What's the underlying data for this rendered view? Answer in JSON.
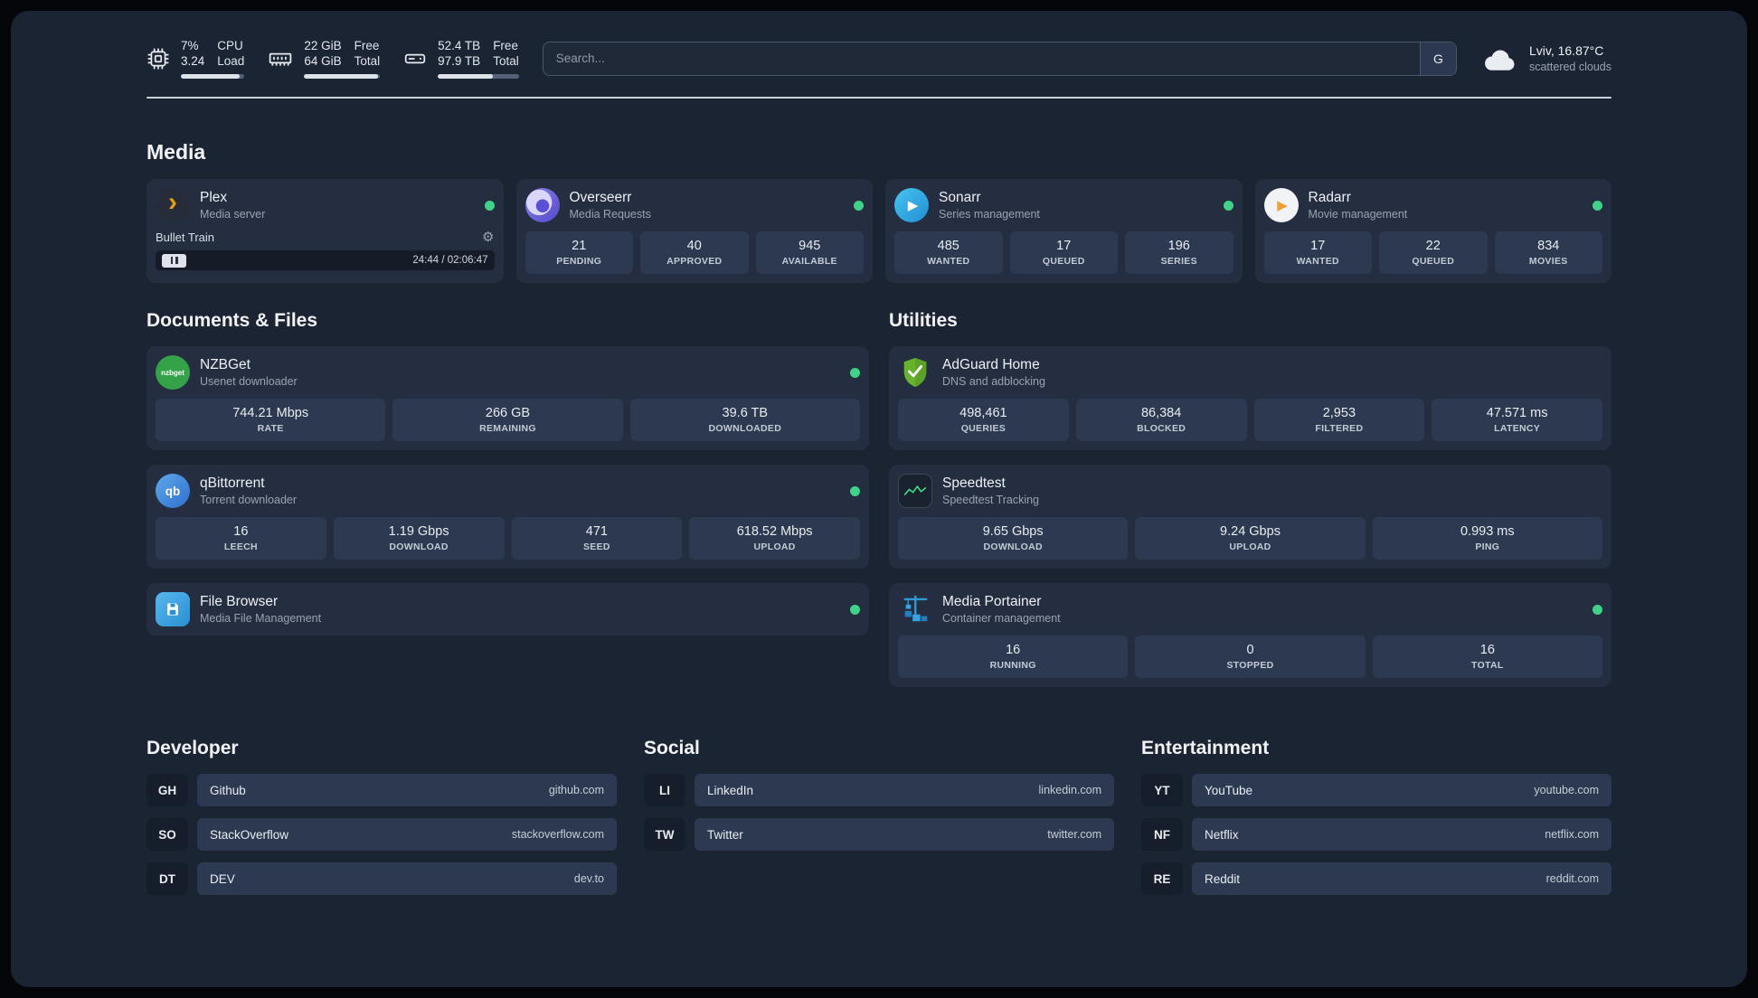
{
  "topbar": {
    "cpu": {
      "value": "7%",
      "sub": "3.24",
      "label": "CPU",
      "sublabel": "Load",
      "fill": 93
    },
    "ram": {
      "value": "22 GiB",
      "sub": "64 GiB",
      "label": "Free",
      "sublabel": "Total",
      "fill": 97
    },
    "disk": {
      "value": "52.4 TB",
      "sub": "97.9 TB",
      "label": "Free",
      "sublabel": "Total",
      "fill": 68
    },
    "search": {
      "placeholder": "Search...",
      "button": "G"
    },
    "weather": {
      "location": "Lviv, 16.87°C",
      "condition": "scattered clouds"
    }
  },
  "media": {
    "title": "Media",
    "plex": {
      "name": "Plex",
      "desc": "Media server",
      "now_playing": "Bullet Train",
      "time": "24:44 / 02:06:47"
    },
    "cards": [
      {
        "name": "Overseerr",
        "desc": "Media Requests",
        "stats": [
          {
            "value": "21",
            "label": "PENDING"
          },
          {
            "value": "40",
            "label": "APPROVED"
          },
          {
            "value": "945",
            "label": "AVAILABLE"
          }
        ]
      },
      {
        "name": "Sonarr",
        "desc": "Series management",
        "stats": [
          {
            "value": "485",
            "label": "WANTED"
          },
          {
            "value": "17",
            "label": "QUEUED"
          },
          {
            "value": "196",
            "label": "SERIES"
          }
        ]
      },
      {
        "name": "Radarr",
        "desc": "Movie management",
        "stats": [
          {
            "value": "17",
            "label": "WANTED"
          },
          {
            "value": "22",
            "label": "QUEUED"
          },
          {
            "value": "834",
            "label": "MOVIES"
          }
        ]
      }
    ]
  },
  "documents": {
    "title": "Documents & Files",
    "cards": [
      {
        "name": "NZBGet",
        "desc": "Usenet downloader",
        "stats": [
          {
            "value": "744.21 Mbps",
            "label": "RATE"
          },
          {
            "value": "266 GB",
            "label": "REMAINING"
          },
          {
            "value": "39.6 TB",
            "label": "DOWNLOADED"
          }
        ]
      },
      {
        "name": "qBittorrent",
        "desc": "Torrent downloader",
        "stats": [
          {
            "value": "16",
            "label": "LEECH"
          },
          {
            "value": "1.19 Gbps",
            "label": "DOWNLOAD"
          },
          {
            "value": "471",
            "label": "SEED"
          },
          {
            "value": "618.52 Mbps",
            "label": "UPLOAD"
          }
        ]
      },
      {
        "name": "File Browser",
        "desc": "Media File Management",
        "stats": []
      }
    ]
  },
  "utilities": {
    "title": "Utilities",
    "cards": [
      {
        "name": "AdGuard Home",
        "desc": "DNS and adblocking",
        "stats": [
          {
            "value": "498,461",
            "label": "QUERIES"
          },
          {
            "value": "86,384",
            "label": "BLOCKED"
          },
          {
            "value": "2,953",
            "label": "FILTERED"
          },
          {
            "value": "47.571 ms",
            "label": "LATENCY"
          }
        ]
      },
      {
        "name": "Speedtest",
        "desc": "Speedtest Tracking",
        "stats": [
          {
            "value": "9.65 Gbps",
            "label": "DOWNLOAD"
          },
          {
            "value": "9.24 Gbps",
            "label": "UPLOAD"
          },
          {
            "value": "0.993 ms",
            "label": "PING"
          }
        ]
      },
      {
        "name": "Media Portainer",
        "desc": "Container management",
        "stats": [
          {
            "value": "16",
            "label": "RUNNING"
          },
          {
            "value": "0",
            "label": "STOPPED"
          },
          {
            "value": "16",
            "label": "TOTAL"
          }
        ]
      }
    ]
  },
  "bookmarks": {
    "groups": [
      {
        "title": "Developer",
        "items": [
          {
            "abbr": "GH",
            "name": "Github",
            "url": "github.com"
          },
          {
            "abbr": "SO",
            "name": "StackOverflow",
            "url": "stackoverflow.com"
          },
          {
            "abbr": "DT",
            "name": "DEV",
            "url": "dev.to"
          }
        ]
      },
      {
        "title": "Social",
        "items": [
          {
            "abbr": "LI",
            "name": "LinkedIn",
            "url": "linkedin.com"
          },
          {
            "abbr": "TW",
            "name": "Twitter",
            "url": "twitter.com"
          }
        ]
      },
      {
        "title": "Entertainment",
        "items": [
          {
            "abbr": "YT",
            "name": "YouTube",
            "url": "youtube.com"
          },
          {
            "abbr": "NF",
            "name": "Netflix",
            "url": "netflix.com"
          },
          {
            "abbr": "RE",
            "name": "Reddit",
            "url": "reddit.com"
          }
        ]
      }
    ]
  },
  "icons": {
    "plex_chevron": "›",
    "play": "▶",
    "qbittorrent_text": "qb",
    "nzbget_text": "nzbget",
    "gear": "⚙"
  },
  "colors": {
    "background": "#1b2433",
    "card": "#242e40",
    "stat_box": "#2c3950",
    "status_green": "#3fd387"
  }
}
